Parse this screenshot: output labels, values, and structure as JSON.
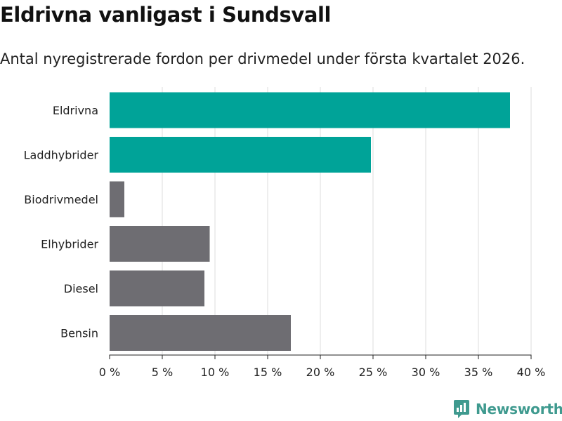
{
  "header": {
    "title": "Eldrivna vanligast i Sundsvall",
    "subtitle": "Antal nyregistrerade fordon per drivmedel under första kvartalet 2026."
  },
  "brand": {
    "name": "Newsworthy",
    "icon": "newsworthy-logo-icon",
    "color": "#3f9a8f"
  },
  "colors": {
    "highlight": "#00a398",
    "other": "#6e6d72",
    "grid": "#dddddd",
    "axis": "#222222"
  },
  "chart_data": {
    "type": "bar",
    "orientation": "horizontal",
    "title": "Eldrivna vanligast i Sundsvall",
    "subtitle": "Antal nyregistrerade fordon per drivmedel under första kvartalet 2026.",
    "xlabel": "",
    "ylabel": "",
    "unit": "%",
    "categories": [
      "Eldrivna",
      "Laddhybrider",
      "Biodrivmedel",
      "Elhybrider",
      "Diesel",
      "Bensin"
    ],
    "values": [
      38,
      24.8,
      1.4,
      9.5,
      9,
      17.2
    ],
    "highlighted": [
      true,
      true,
      false,
      false,
      false,
      false
    ],
    "xlim": [
      0,
      40
    ],
    "ticks": [
      0,
      5,
      10,
      15,
      20,
      25,
      30,
      35,
      40
    ],
    "tick_labels": [
      "0 %",
      "5 %",
      "10 %",
      "15 %",
      "20 %",
      "25 %",
      "30 %",
      "35 %",
      "40 %"
    ],
    "grid": true
  }
}
